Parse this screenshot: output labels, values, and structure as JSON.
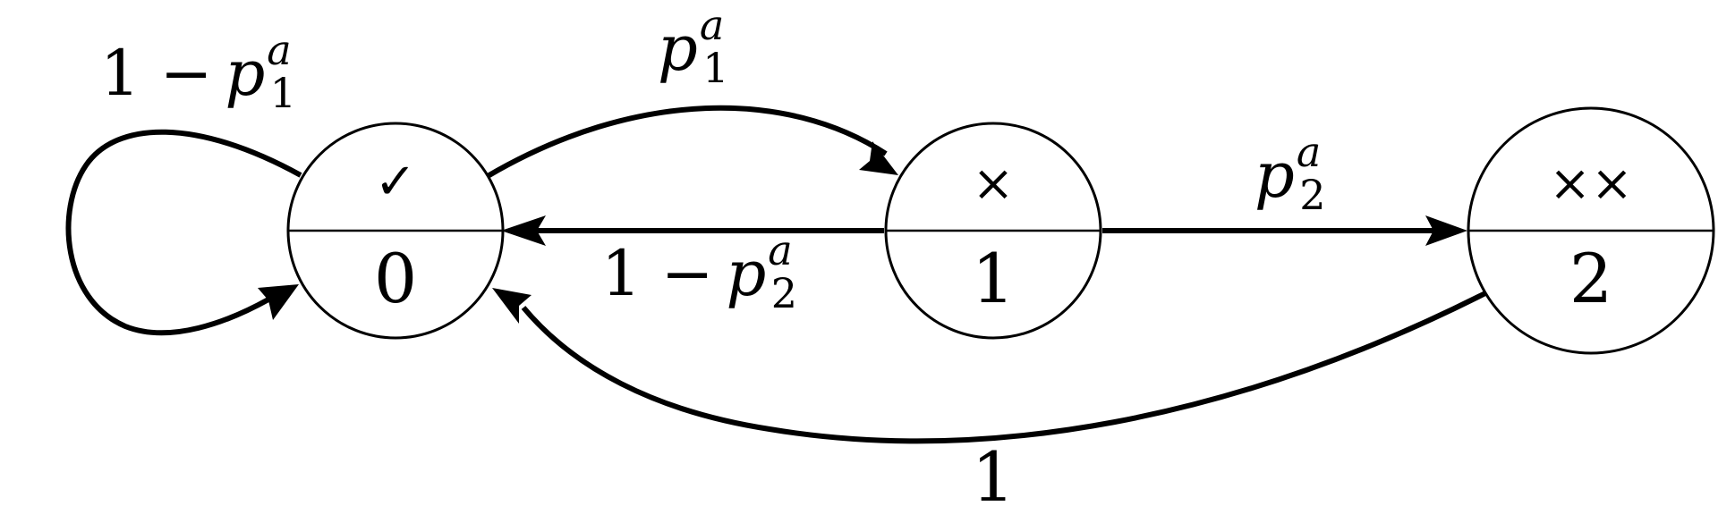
{
  "nodes": [
    {
      "id": "0",
      "symbol": "✓",
      "label": "0"
    },
    {
      "id": "1",
      "symbol": "×",
      "label": "1"
    },
    {
      "id": "2",
      "symbol": "××",
      "label": "2"
    }
  ],
  "edges": {
    "self_loop_0": {
      "minus_one": "1 −",
      "var": "p",
      "sup": "a",
      "sub": "1"
    },
    "from_0_to_1": {
      "var": "p",
      "sup": "a",
      "sub": "1"
    },
    "from_1_to_0": {
      "minus_one": "1 −",
      "var": "p",
      "sup": "a",
      "sub": "2"
    },
    "from_1_to_2": {
      "var": "p",
      "sup": "a",
      "sub": "2"
    },
    "from_2_to_0": {
      "value": "1"
    }
  }
}
